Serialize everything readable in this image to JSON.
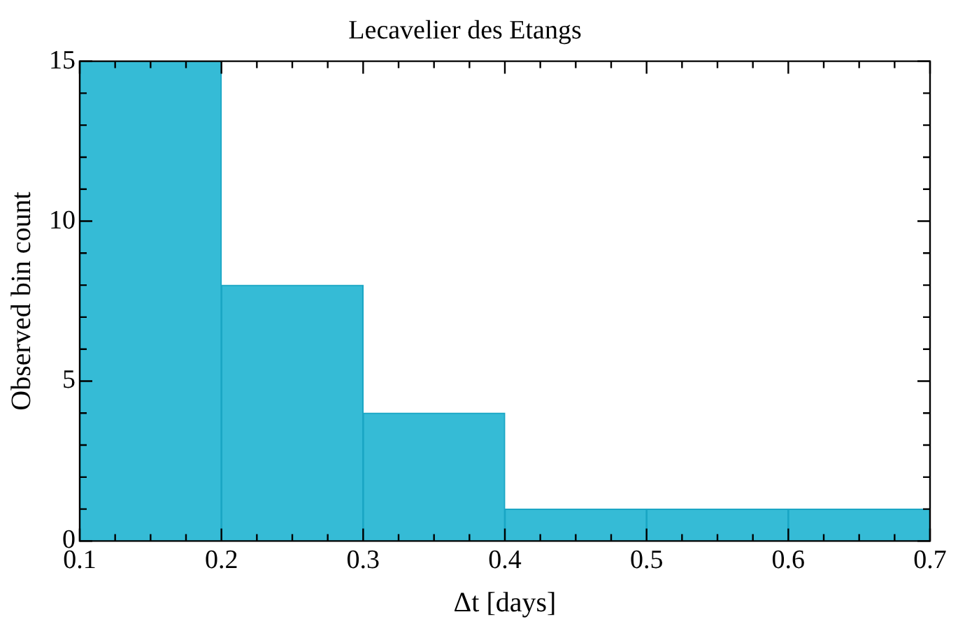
{
  "chart_data": {
    "type": "histogram",
    "title": "Lecavelier des Etangs",
    "xlabel": "Δt [days]",
    "ylabel": "Observed bin count",
    "bins": [
      0.1,
      0.2,
      0.3,
      0.4,
      0.5,
      0.6,
      0.7
    ],
    "values": [
      15,
      8,
      4,
      1,
      1,
      1
    ],
    "color": "#35bbd6",
    "xlim": [
      0.1,
      0.7
    ],
    "xticks": [
      0.1,
      0.2,
      0.3,
      0.4,
      0.5,
      0.6,
      0.7
    ],
    "ylim": [
      0,
      15
    ],
    "yticks": [
      0,
      5,
      10,
      15
    ],
    "grid": false,
    "legend": false
  }
}
